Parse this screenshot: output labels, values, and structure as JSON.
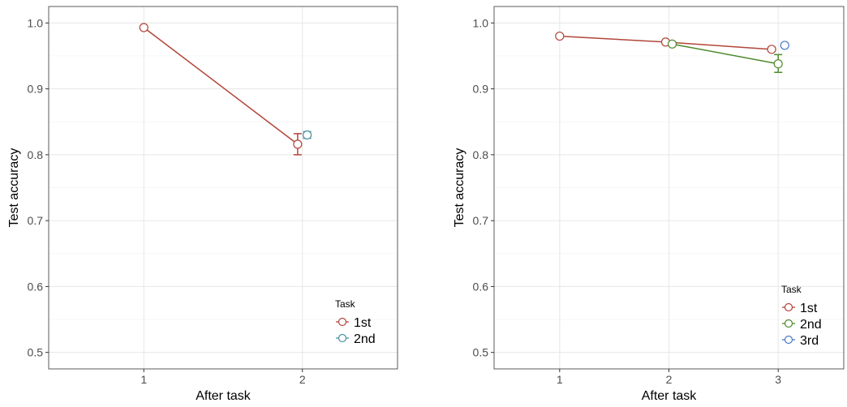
{
  "chart_data": [
    {
      "type": "line",
      "xlabel": "After task",
      "ylabel": "Test accuracy",
      "x": [
        1,
        2
      ],
      "xticks": [
        "1",
        "2"
      ],
      "ylim": [
        0.475,
        1.025
      ],
      "yticks": [
        "0.5",
        "0.6",
        "0.7",
        "0.8",
        "0.9",
        "1.0"
      ],
      "grid": true,
      "legend": {
        "title": "Task",
        "placement": "bottom-right"
      },
      "series": [
        {
          "name": "1st",
          "color": "#b2453a",
          "points": [
            {
              "x": 1,
              "y": 0.993,
              "lo": 0.991,
              "hi": 0.995
            },
            {
              "x": 2,
              "y": 0.816,
              "lo": 0.8,
              "hi": 0.832
            }
          ]
        },
        {
          "name": "2nd",
          "color": "#4a8fa0",
          "points": [
            {
              "x": 2,
              "y": 0.83,
              "lo": 0.825,
              "hi": 0.835
            }
          ]
        }
      ]
    },
    {
      "type": "line",
      "xlabel": "After task",
      "ylabel": "Test accuracy",
      "x": [
        1,
        2,
        3
      ],
      "xticks": [
        "1",
        "2",
        "3"
      ],
      "ylim": [
        0.475,
        1.025
      ],
      "yticks": [
        "0.5",
        "0.6",
        "0.7",
        "0.8",
        "0.9",
        "1.0"
      ],
      "grid": true,
      "legend": {
        "title": "Task",
        "placement": "bottom-right"
      },
      "series": [
        {
          "name": "1st",
          "color": "#b2453a",
          "points": [
            {
              "x": 1,
              "y": 0.98,
              "lo": 0.979,
              "hi": 0.981
            },
            {
              "x": 2,
              "y": 0.971,
              "lo": 0.97,
              "hi": 0.972
            },
            {
              "x": 3,
              "y": 0.96,
              "lo": 0.957,
              "hi": 0.963
            }
          ]
        },
        {
          "name": "2nd",
          "color": "#4e8a2c",
          "points": [
            {
              "x": 2,
              "y": 0.968,
              "lo": 0.967,
              "hi": 0.969
            },
            {
              "x": 3,
              "y": 0.938,
              "lo": 0.925,
              "hi": 0.952
            }
          ]
        },
        {
          "name": "3rd",
          "color": "#4a78c8",
          "points": [
            {
              "x": 3,
              "y": 0.966,
              "lo": 0.965,
              "hi": 0.967
            }
          ]
        }
      ]
    }
  ]
}
